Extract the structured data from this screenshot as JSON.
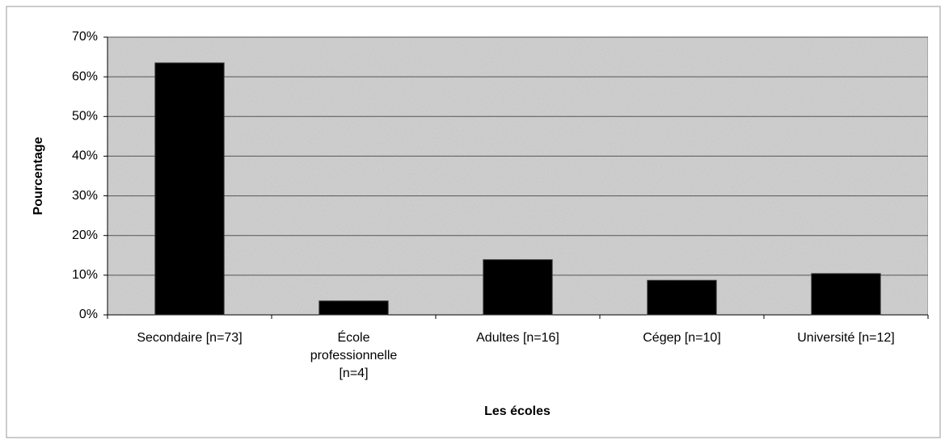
{
  "chart_data": {
    "type": "bar",
    "categories": [
      "Secondaire [n=73]",
      "École professionnelle [n=4]",
      "Adultes [n=16]",
      "Cégep [n=10]",
      "Université [n=12]"
    ],
    "values": [
      63.5,
      3.5,
      13.9,
      8.7,
      10.4
    ],
    "color": "#000000",
    "ylim": [
      0,
      70
    ],
    "yticks": [
      {
        "value": 0,
        "label": "0%"
      },
      {
        "value": 10,
        "label": "10%"
      },
      {
        "value": 20,
        "label": "20%"
      },
      {
        "value": 30,
        "label": "30%"
      },
      {
        "value": 40,
        "label": "40%"
      },
      {
        "value": 50,
        "label": "50%"
      },
      {
        "value": 60,
        "label": "60%"
      },
      {
        "value": 70,
        "label": "70%"
      }
    ],
    "ylabel": "Pourcentage",
    "xlabel": "Les écoles",
    "grid": true
  }
}
